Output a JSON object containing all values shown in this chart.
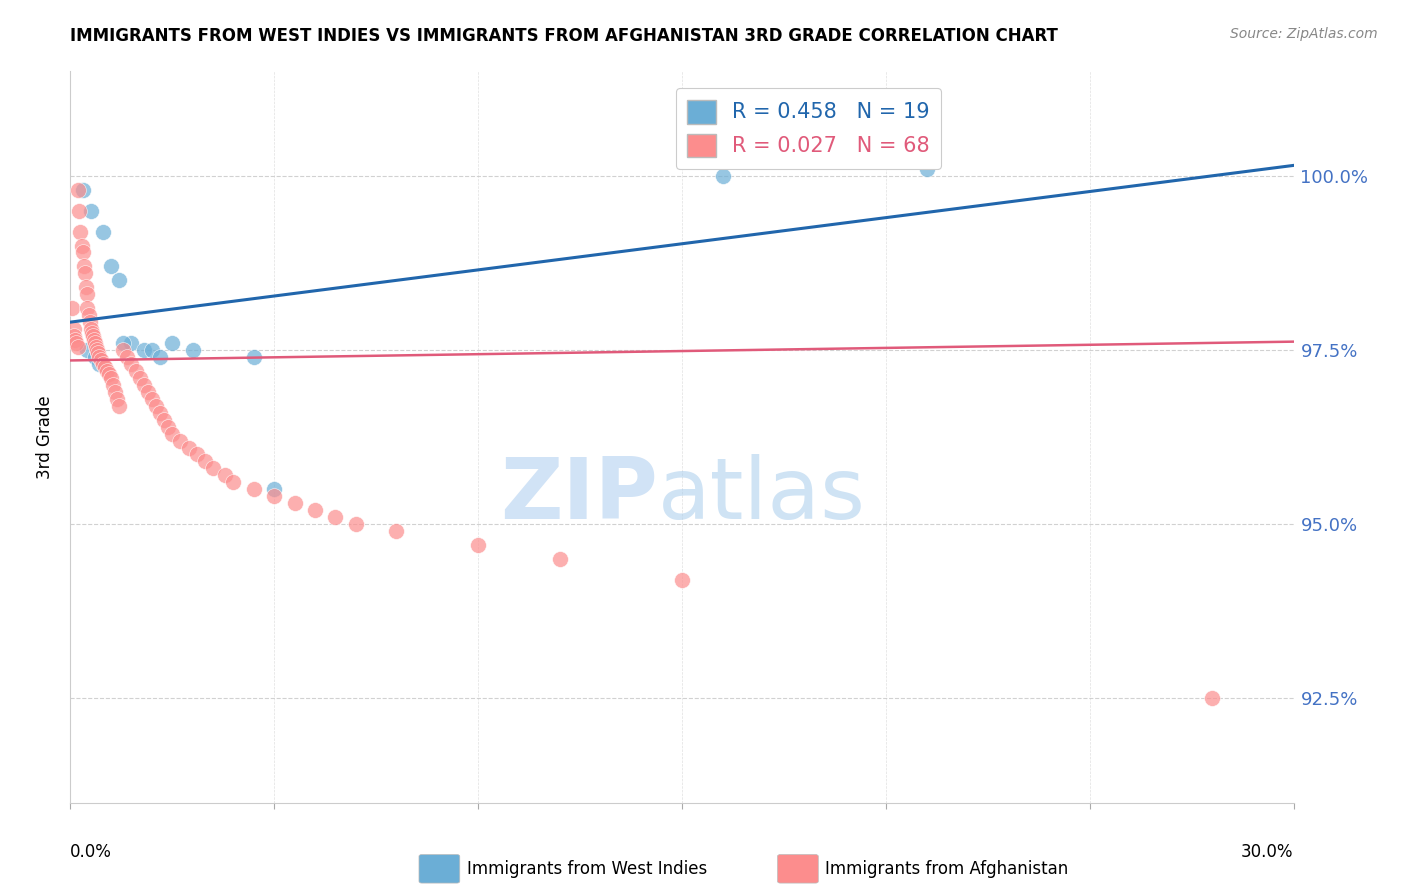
{
  "title": "IMMIGRANTS FROM WEST INDIES VS IMMIGRANTS FROM AFGHANISTAN 3RD GRADE CORRELATION CHART",
  "source": "Source: ZipAtlas.com",
  "ylabel": "3rd Grade",
  "ytick_values": [
    100.0,
    97.5,
    95.0,
    92.5
  ],
  "xlim": [
    0.0,
    30.0
  ],
  "ylim": [
    91.0,
    101.5
  ],
  "blue_R": 0.458,
  "blue_N": 19,
  "pink_R": 0.027,
  "pink_N": 68,
  "blue_label": "Immigrants from West Indies",
  "pink_label": "Immigrants from Afghanistan",
  "blue_color": "#6baed6",
  "pink_color": "#fc8d8d",
  "blue_line_color": "#2166ac",
  "pink_line_color": "#e05a7a",
  "background_color": "#ffffff",
  "blue_trend_x": [
    0,
    30
  ],
  "blue_trend_y": [
    97.9,
    100.15
  ],
  "pink_trend_x": [
    0,
    30
  ],
  "pink_trend_y": [
    97.35,
    97.62
  ],
  "blue_scatter_x": [
    0.3,
    0.5,
    0.8,
    1.0,
    1.2,
    1.5,
    1.8,
    2.0,
    2.2,
    2.5,
    3.0,
    0.4,
    0.6,
    0.7,
    1.3,
    4.5,
    5.0,
    16.0,
    21.0
  ],
  "blue_scatter_y": [
    99.8,
    99.5,
    99.2,
    98.7,
    98.5,
    97.6,
    97.5,
    97.5,
    97.4,
    97.6,
    97.5,
    97.5,
    97.4,
    97.3,
    97.6,
    97.4,
    95.5,
    100.0,
    100.1
  ],
  "pink_scatter_x": [
    0.05,
    0.08,
    0.1,
    0.12,
    0.15,
    0.18,
    0.2,
    0.22,
    0.25,
    0.28,
    0.3,
    0.33,
    0.35,
    0.38,
    0.4,
    0.42,
    0.45,
    0.48,
    0.5,
    0.52,
    0.55,
    0.58,
    0.6,
    0.62,
    0.65,
    0.68,
    0.7,
    0.75,
    0.8,
    0.85,
    0.9,
    0.95,
    1.0,
    1.05,
    1.1,
    1.15,
    1.2,
    1.3,
    1.4,
    1.5,
    1.6,
    1.7,
    1.8,
    1.9,
    2.0,
    2.1,
    2.2,
    2.3,
    2.4,
    2.5,
    2.7,
    2.9,
    3.1,
    3.3,
    3.5,
    3.8,
    4.0,
    4.5,
    5.0,
    5.5,
    6.0,
    6.5,
    7.0,
    8.0,
    10.0,
    12.0,
    15.0,
    28.0
  ],
  "pink_scatter_y": [
    98.1,
    97.8,
    97.7,
    97.65,
    97.6,
    97.55,
    99.8,
    99.5,
    99.2,
    99.0,
    98.9,
    98.7,
    98.6,
    98.4,
    98.3,
    98.1,
    98.0,
    97.9,
    97.8,
    97.75,
    97.7,
    97.65,
    97.6,
    97.55,
    97.5,
    97.45,
    97.4,
    97.35,
    97.3,
    97.25,
    97.2,
    97.15,
    97.1,
    97.0,
    96.9,
    96.8,
    96.7,
    97.5,
    97.4,
    97.3,
    97.2,
    97.1,
    97.0,
    96.9,
    96.8,
    96.7,
    96.6,
    96.5,
    96.4,
    96.3,
    96.2,
    96.1,
    96.0,
    95.9,
    95.8,
    95.7,
    95.6,
    95.5,
    95.4,
    95.3,
    95.2,
    95.1,
    95.0,
    94.9,
    94.7,
    94.5,
    94.2,
    92.5
  ]
}
